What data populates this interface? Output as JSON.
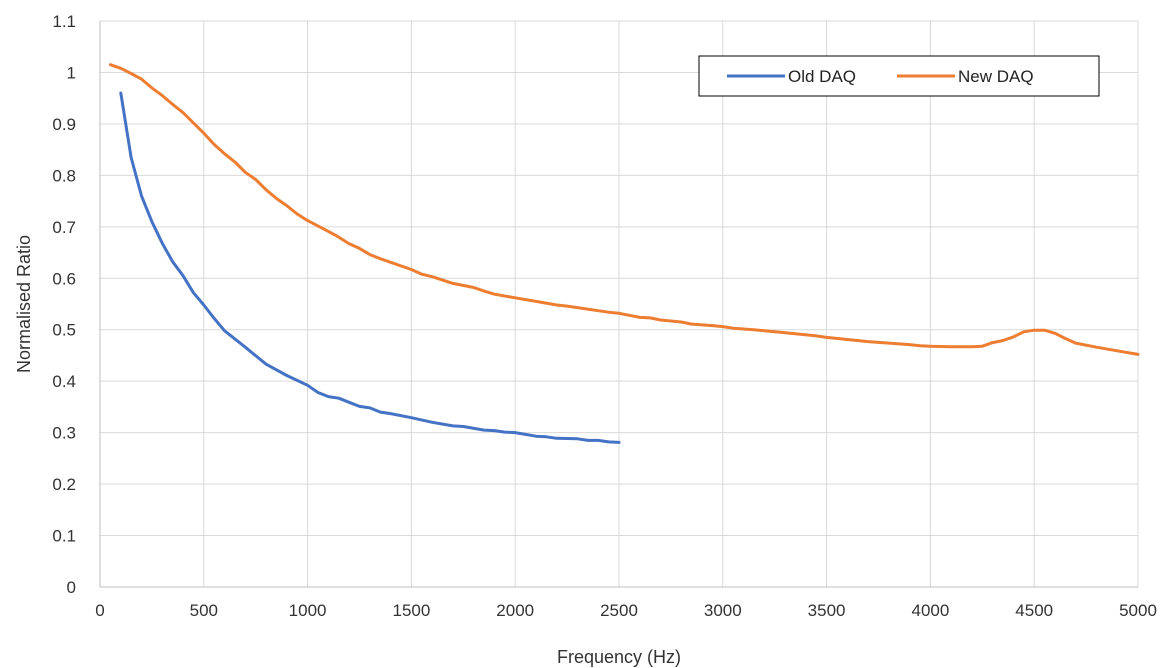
{
  "chart_data": {
    "type": "line",
    "title": "",
    "xlabel": "Frequency  (Hz)",
    "ylabel": "Normalised Ratio",
    "xlim": [
      0,
      5000
    ],
    "ylim": [
      0,
      1.1
    ],
    "xticks": [
      0,
      500,
      1000,
      1500,
      2000,
      2500,
      3000,
      3500,
      4000,
      4500,
      5000
    ],
    "xtick_labels": [
      "0",
      "500",
      "1000",
      "1500",
      "2000",
      "2500",
      "3000",
      "3500",
      "4000",
      "4500",
      "5000"
    ],
    "yticks": [
      0,
      0.1,
      0.2,
      0.3,
      0.4,
      0.5,
      0.6,
      0.7,
      0.8,
      0.9,
      1,
      1.1
    ],
    "ytick_labels": [
      "0",
      "0.1",
      "0.2",
      "0.3",
      "0.4",
      "0.5",
      "0.6",
      "0.7",
      "0.8",
      "0.9",
      "1",
      "1.1"
    ],
    "grid": true,
    "legend_position": "top-right",
    "series": [
      {
        "name": "Old DAQ",
        "color": "#4472C4",
        "points": [
          [
            100,
            0.96
          ],
          [
            150,
            0.835
          ],
          [
            200,
            0.76
          ],
          [
            250,
            0.71
          ],
          [
            300,
            0.668
          ],
          [
            350,
            0.632
          ],
          [
            400,
            0.605
          ],
          [
            450,
            0.572
          ],
          [
            500,
            0.548
          ],
          [
            550,
            0.522
          ],
          [
            600,
            0.498
          ],
          [
            700,
            0.466
          ],
          [
            800,
            0.433
          ],
          [
            900,
            0.411
          ],
          [
            1000,
            0.392
          ],
          [
            1050,
            0.378
          ],
          [
            1100,
            0.37
          ],
          [
            1150,
            0.367
          ],
          [
            1200,
            0.359
          ],
          [
            1250,
            0.351
          ],
          [
            1300,
            0.348
          ],
          [
            1350,
            0.34
          ],
          [
            1400,
            0.337
          ],
          [
            1500,
            0.329
          ],
          [
            1600,
            0.32
          ],
          [
            1700,
            0.313
          ],
          [
            1750,
            0.312
          ],
          [
            1850,
            0.305
          ],
          [
            1900,
            0.304
          ],
          [
            1950,
            0.301
          ],
          [
            2000,
            0.3
          ],
          [
            2100,
            0.293
          ],
          [
            2150,
            0.292
          ],
          [
            2200,
            0.289
          ],
          [
            2300,
            0.288
          ],
          [
            2350,
            0.285
          ],
          [
            2400,
            0.285
          ],
          [
            2450,
            0.282
          ],
          [
            2500,
            0.281
          ]
        ]
      },
      {
        "name": "New DAQ",
        "color": "#ED7D31",
        "points": [
          [
            50,
            1.015
          ],
          [
            100,
            1.008
          ],
          [
            150,
            0.998
          ],
          [
            200,
            0.987
          ],
          [
            250,
            0.97
          ],
          [
            300,
            0.955
          ],
          [
            350,
            0.938
          ],
          [
            400,
            0.922
          ],
          [
            450,
            0.902
          ],
          [
            500,
            0.882
          ],
          [
            550,
            0.86
          ],
          [
            600,
            0.842
          ],
          [
            650,
            0.826
          ],
          [
            700,
            0.806
          ],
          [
            750,
            0.792
          ],
          [
            800,
            0.772
          ],
          [
            850,
            0.755
          ],
          [
            900,
            0.741
          ],
          [
            950,
            0.725
          ],
          [
            1000,
            0.712
          ],
          [
            1100,
            0.691
          ],
          [
            1150,
            0.68
          ],
          [
            1200,
            0.667
          ],
          [
            1250,
            0.658
          ],
          [
            1300,
            0.646
          ],
          [
            1350,
            0.638
          ],
          [
            1400,
            0.631
          ],
          [
            1500,
            0.617
          ],
          [
            1550,
            0.608
          ],
          [
            1600,
            0.603
          ],
          [
            1700,
            0.59
          ],
          [
            1800,
            0.582
          ],
          [
            1850,
            0.575
          ],
          [
            1900,
            0.569
          ],
          [
            2000,
            0.562
          ],
          [
            2100,
            0.555
          ],
          [
            2200,
            0.548
          ],
          [
            2250,
            0.546
          ],
          [
            2300,
            0.543
          ],
          [
            2400,
            0.537
          ],
          [
            2450,
            0.534
          ],
          [
            2500,
            0.532
          ],
          [
            2600,
            0.524
          ],
          [
            2650,
            0.523
          ],
          [
            2700,
            0.519
          ],
          [
            2800,
            0.515
          ],
          [
            2850,
            0.511
          ],
          [
            2950,
            0.508
          ],
          [
            3000,
            0.506
          ],
          [
            3050,
            0.503
          ],
          [
            3150,
            0.5
          ],
          [
            3250,
            0.496
          ],
          [
            3350,
            0.492
          ],
          [
            3450,
            0.488
          ],
          [
            3500,
            0.485
          ],
          [
            3600,
            0.481
          ],
          [
            3700,
            0.477
          ],
          [
            3800,
            0.474
          ],
          [
            3900,
            0.471
          ],
          [
            3950,
            0.469
          ],
          [
            4000,
            0.468
          ],
          [
            4100,
            0.467
          ],
          [
            4200,
            0.467
          ],
          [
            4250,
            0.468
          ],
          [
            4300,
            0.475
          ],
          [
            4350,
            0.479
          ],
          [
            4400,
            0.486
          ],
          [
            4450,
            0.496
          ],
          [
            4500,
            0.499
          ],
          [
            4550,
            0.499
          ],
          [
            4600,
            0.493
          ],
          [
            4650,
            0.483
          ],
          [
            4700,
            0.474
          ],
          [
            4800,
            0.466
          ],
          [
            4900,
            0.459
          ],
          [
            5000,
            0.452
          ]
        ]
      }
    ]
  }
}
